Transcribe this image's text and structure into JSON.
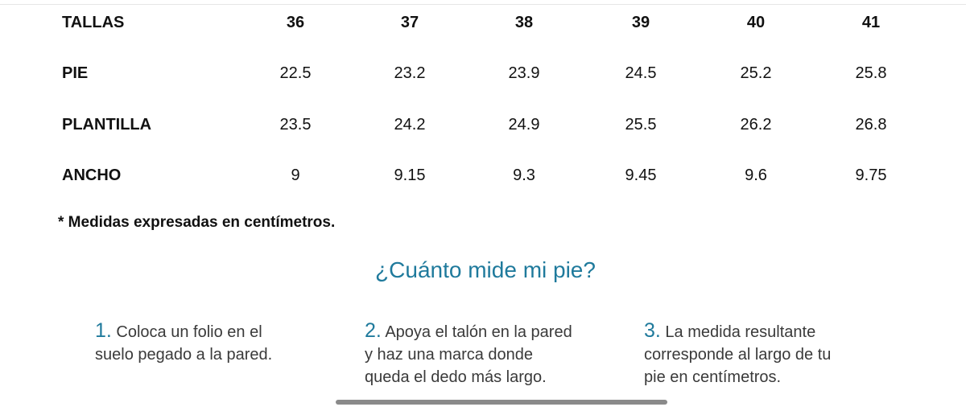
{
  "table": {
    "header": [
      "TALLAS",
      "36",
      "37",
      "38",
      "39",
      "40",
      "41"
    ],
    "rows": [
      [
        "PIE",
        "22.5",
        "23.2",
        "23.9",
        "24.5",
        "25.2",
        "25.8"
      ],
      [
        "PLANTILLA",
        "23.5",
        "24.2",
        "24.9",
        "25.5",
        "26.2",
        "26.8"
      ],
      [
        "ANCHO",
        "9",
        "9.15",
        "9.3",
        "9.45",
        "9.6",
        "9.75"
      ]
    ]
  },
  "note": "* Medidas expresadas en centímetros.",
  "heading": "¿Cuánto mide mi pie?",
  "steps": [
    {
      "number": "1.",
      "lines": [
        "Coloca un folio en el",
        "suelo pegado a la pared."
      ]
    },
    {
      "number": "2.",
      "lines": [
        "Apoya el talón en la pared",
        "y haz una marca donde",
        "queda el dedo más largo."
      ]
    },
    {
      "number": "3.",
      "lines": [
        "La medida resultante",
        "corresponde al largo de tu",
        "pie en centímetros."
      ]
    }
  ]
}
